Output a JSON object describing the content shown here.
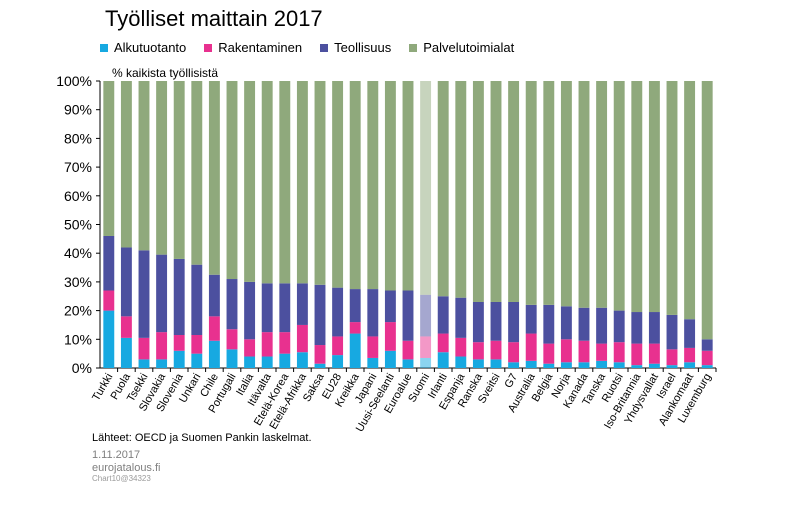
{
  "title": "Työlliset maittain 2017",
  "subtitle": "% kaikista työllisistä",
  "legend": [
    {
      "label": "Alkutuotanto",
      "color": "#17a9e1"
    },
    {
      "label": "Rakentaminen",
      "color": "#e8318f"
    },
    {
      "label": "Teollisuus",
      "color": "#4c509f"
    },
    {
      "label": "Palvelutoimialat",
      "color": "#8fa97c"
    }
  ],
  "footer": {
    "source": "Lähteet: OECD ja Suomen Pankin laskelmat.",
    "date": "1.11.2017",
    "site": "eurojatalous.fi",
    "chart_id": "Chart10@34323"
  },
  "chart_data": {
    "type": "bar",
    "stacked": true,
    "title": "Työlliset maittain 2017",
    "ylabel": "% kaikista työllisistä",
    "ylim": [
      0,
      100
    ],
    "yticks": [
      "0%",
      "10%",
      "20%",
      "30%",
      "40%",
      "50%",
      "60%",
      "70%",
      "80%",
      "90%",
      "100%"
    ],
    "grid": false,
    "legend_position": "top",
    "highlight_category": "Suomi",
    "categories": [
      "Turkki",
      "Puola",
      "Tsekki",
      "Slovakia",
      "Slovenia",
      "Unkari",
      "Chile",
      "Portugali",
      "Italia",
      "Itävalta",
      "Etelä-Korea",
      "Etelä-Afrikka",
      "Saksa",
      "EU28",
      "Kreikka",
      "Japani",
      "Uusi-Seelanti",
      "Euroalue",
      "Suomi",
      "Irlanti",
      "Espanja",
      "Ranska",
      "Sveitsi",
      "G7",
      "Australia",
      "Belgia",
      "Norja",
      "Kanada",
      "Tanska",
      "Ruotsi",
      "Iso-Britannia",
      "Yhdysvallat",
      "Israel",
      "Alankomaat",
      "Luxemburg"
    ],
    "series": [
      {
        "name": "Alkutuotanto",
        "color": "#17a9e1",
        "values": [
          20,
          10.5,
          3,
          3,
          6,
          5,
          9.5,
          6.5,
          4,
          4,
          5,
          5.5,
          1.5,
          4.5,
          12,
          3.5,
          6,
          3,
          3.5,
          5.5,
          4,
          3,
          3,
          2,
          2.5,
          1.5,
          2,
          2,
          2.5,
          2,
          1,
          1.5,
          1,
          2,
          1
        ]
      },
      {
        "name": "Rakentaminen",
        "color": "#e8318f",
        "values": [
          7,
          7.5,
          7.5,
          9.5,
          5.5,
          6.5,
          8.5,
          7,
          6,
          8.5,
          7.5,
          9.5,
          6.5,
          6.5,
          4,
          7.5,
          10,
          6.5,
          7.5,
          6.5,
          6.5,
          6,
          6.5,
          7,
          9.5,
          7,
          8,
          7.5,
          6,
          7,
          7.5,
          7,
          5.5,
          5,
          5
        ]
      },
      {
        "name": "Teollisuus",
        "color": "#4c509f",
        "values": [
          19,
          24,
          30.5,
          27,
          26.5,
          24.5,
          14.5,
          17.5,
          20,
          17,
          17,
          14.5,
          21,
          17,
          11.5,
          16.5,
          11,
          17.5,
          14.5,
          13,
          14,
          14,
          13.5,
          14,
          10,
          13.5,
          11.5,
          11.5,
          12.5,
          11,
          11,
          11,
          12,
          10,
          4
        ]
      },
      {
        "name": "Palvelutoimialat",
        "color": "#8fa97c",
        "values": [
          54,
          58,
          59,
          60.5,
          62,
          64,
          67.5,
          69,
          70,
          70.5,
          70.5,
          70.5,
          71,
          72,
          72.5,
          72.5,
          73,
          73,
          74.5,
          75,
          75.5,
          77,
          77,
          77,
          78,
          78,
          78.5,
          79,
          79,
          80,
          80.5,
          80.5,
          81.5,
          83,
          90
        ]
      }
    ]
  }
}
